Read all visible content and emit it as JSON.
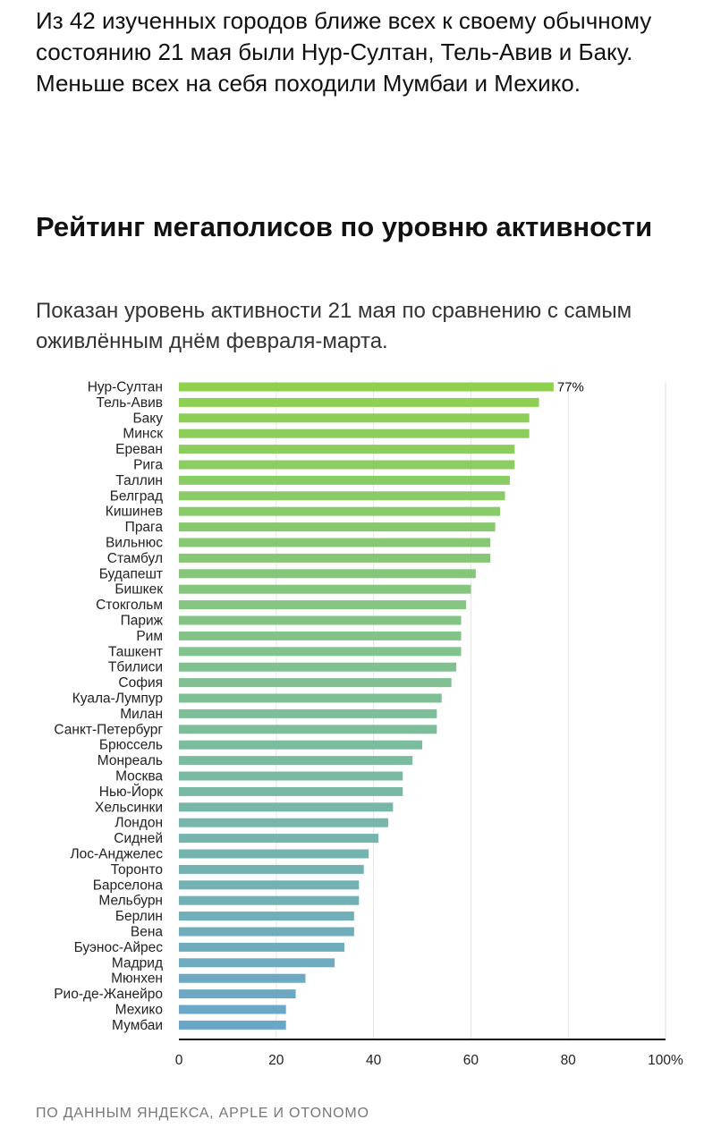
{
  "intro_text": "Из 42 изученных городов ближе всех к своему обычному состоянию 21 мая были Нур-Султан, Тель-Авив и Баку. Меньше всех на себя походили Мумбаи и Мехико.",
  "source_text": "ПО ДАННЫМ ЯНДЕКСА, APPLE И OTONOMO",
  "colors": {
    "bar_top": "#8fd14f",
    "bar_mid": "#7fbf98",
    "bar_bottom": "#6aa6c8",
    "axis": "#111111",
    "grid": "#e6e6e6"
  },
  "chart_data": {
    "type": "bar",
    "orientation": "horizontal",
    "title": "Рейтинг мегаполисов по уровню активности",
    "subtitle": "Показан уровень активности 21 мая по сравнению с самым оживлённым днём февраля-марта.",
    "categories": [
      "Нур-Султан",
      "Тель-Авив",
      "Баку",
      "Минск",
      "Ереван",
      "Рига",
      "Таллин",
      "Белград",
      "Кишинев",
      "Прага",
      "Вильнюс",
      "Стамбул",
      "Будапешт",
      "Бишкек",
      "Стокгольм",
      "Париж",
      "Рим",
      "Ташкент",
      "Тбилиси",
      "София",
      "Куала-Лумпур",
      "Милан",
      "Санкт-Петербург",
      "Брюссель",
      "Монреаль",
      "Москва",
      "Нью-Йорк",
      "Хельсинки",
      "Лондон",
      "Сидней",
      "Лос-Анджелес",
      "Торонто",
      "Барселона",
      "Мельбурн",
      "Берлин",
      "Вена",
      "Буэнос-Айрес",
      "Мадрид",
      "Мюнхен",
      "Рио-де-Жанейро",
      "Мехико",
      "Мумбаи"
    ],
    "values": [
      77,
      74,
      72,
      72,
      69,
      69,
      68,
      67,
      66,
      65,
      64,
      64,
      61,
      60,
      59,
      58,
      58,
      58,
      57,
      56,
      54,
      53,
      53,
      50,
      48,
      46,
      46,
      44,
      43,
      41,
      39,
      38,
      37,
      37,
      36,
      36,
      34,
      32,
      26,
      24,
      22,
      22
    ],
    "value_label": "77%",
    "x_ticks": [
      "0",
      "20",
      "40",
      "60",
      "80",
      "100%"
    ],
    "xlim": [
      0,
      100
    ],
    "grid": true,
    "legend": "none"
  }
}
